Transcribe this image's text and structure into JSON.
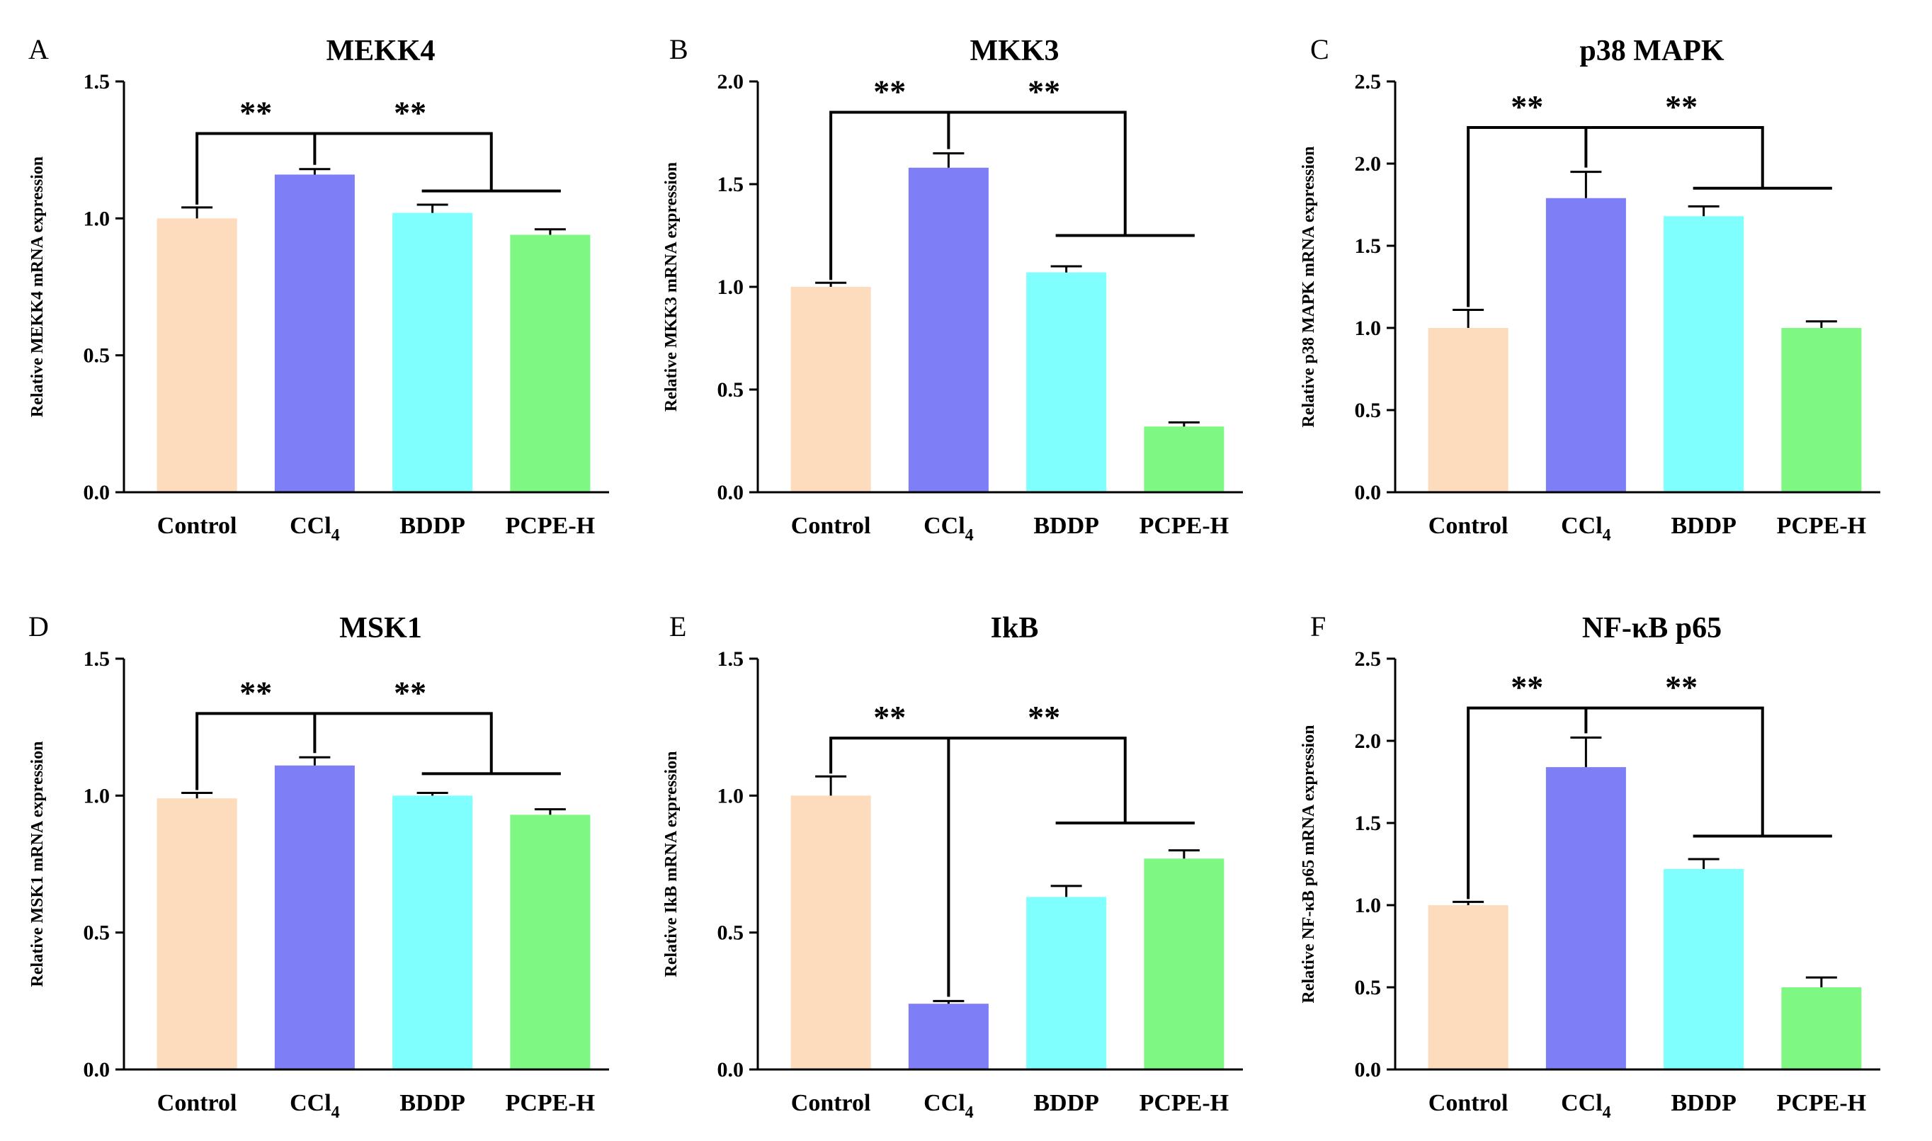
{
  "figure": {
    "colors": {
      "Control": "#FDDCBE",
      "CCl4": "#7E7EF7",
      "BDDP": "#80FFFF",
      "PCPE-H": "#7FF883"
    },
    "significance": "**"
  },
  "chart_data": [
    {
      "type": "bar",
      "panel": "A",
      "title": "MEKK4",
      "ylabel": "Relative MEKK4  mRNA expression",
      "categories": [
        {
          "label": "Control",
          "sub": ""
        },
        {
          "label": "CCl",
          "sub": "4"
        },
        {
          "label": "BDDP",
          "sub": ""
        },
        {
          "label": "PCPE-H",
          "sub": ""
        }
      ],
      "values": [
        1.0,
        1.16,
        1.02,
        0.94
      ],
      "errors": [
        0.04,
        0.02,
        0.03,
        0.02
      ],
      "ylim": [
        0,
        1.5
      ],
      "yticks": [
        "0.0",
        "0.5",
        "1.0",
        "1.5"
      ],
      "comparison": {
        "ref": 1,
        "main_y": 1.31,
        "left_to": 0,
        "right_to": 3,
        "sub_y": 1.1,
        "sub_from": 2,
        "sub_to": 3,
        "drop_y": 1.1
      }
    },
    {
      "type": "bar",
      "panel": "B",
      "title": "MKK3",
      "ylabel": "Relative MKK3  mRNA expression",
      "categories": [
        {
          "label": "Control",
          "sub": ""
        },
        {
          "label": "CCl",
          "sub": "4"
        },
        {
          "label": "BDDP",
          "sub": ""
        },
        {
          "label": "PCPE-H",
          "sub": ""
        }
      ],
      "values": [
        1.0,
        1.58,
        1.07,
        0.32
      ],
      "errors": [
        0.02,
        0.07,
        0.03,
        0.02
      ],
      "ylim": [
        0,
        2.0
      ],
      "yticks": [
        "0.0",
        "0.5",
        "1.0",
        "1.5",
        "2.0"
      ],
      "comparison": {
        "ref": 1,
        "main_y": 1.85,
        "left_to": 0,
        "right_to": 3,
        "sub_y": 1.25,
        "sub_from": 2,
        "sub_to": 3,
        "drop_y": 1.25
      }
    },
    {
      "type": "bar",
      "panel": "C",
      "title": "p38 MAPK",
      "ylabel": "Relative p38 MAPK  mRNA expression",
      "categories": [
        {
          "label": "Control",
          "sub": ""
        },
        {
          "label": "CCl",
          "sub": "4"
        },
        {
          "label": "BDDP",
          "sub": ""
        },
        {
          "label": "PCPE-H",
          "sub": ""
        }
      ],
      "values": [
        1.0,
        1.79,
        1.68,
        1.0
      ],
      "errors": [
        0.11,
        0.16,
        0.06,
        0.04
      ],
      "ylim": [
        0,
        2.5
      ],
      "yticks": [
        "0.0",
        "0.5",
        "1.0",
        "1.5",
        "2.0",
        "2.5"
      ],
      "comparison": {
        "ref": 1,
        "main_y": 2.22,
        "left_to": 0,
        "right_to": 3,
        "sub_y": 1.85,
        "sub_from": 2,
        "sub_to": 3,
        "drop_y": 1.85
      }
    },
    {
      "type": "bar",
      "panel": "D",
      "title": "MSK1",
      "ylabel": "Relative MSK1  mRNA expression",
      "categories": [
        {
          "label": "Control",
          "sub": ""
        },
        {
          "label": "CCl",
          "sub": "4"
        },
        {
          "label": "BDDP",
          "sub": ""
        },
        {
          "label": "PCPE-H",
          "sub": ""
        }
      ],
      "values": [
        0.99,
        1.11,
        1.0,
        0.93
      ],
      "errors": [
        0.02,
        0.03,
        0.01,
        0.02
      ],
      "ylim": [
        0,
        1.5
      ],
      "yticks": [
        "0.0",
        "0.5",
        "1.0",
        "1.5"
      ],
      "comparison": {
        "ref": 1,
        "main_y": 1.3,
        "left_to": 0,
        "right_to": 3,
        "sub_y": 1.08,
        "sub_from": 2,
        "sub_to": 3,
        "drop_y": 1.08
      }
    },
    {
      "type": "bar",
      "panel": "E",
      "title": "IkB",
      "ylabel": "Relative IkB  mRNA expression",
      "categories": [
        {
          "label": "Control",
          "sub": ""
        },
        {
          "label": "CCl",
          "sub": "4"
        },
        {
          "label": "BDDP",
          "sub": ""
        },
        {
          "label": "PCPE-H",
          "sub": ""
        }
      ],
      "values": [
        1.0,
        0.24,
        0.63,
        0.77
      ],
      "errors": [
        0.07,
        0.01,
        0.04,
        0.03
      ],
      "ylim": [
        0,
        1.5
      ],
      "yticks": [
        "0.0",
        "0.5",
        "1.0",
        "1.5"
      ],
      "comparison": {
        "ref": 1,
        "main_y": 1.21,
        "left_to": 0,
        "right_to": 3,
        "sub_y": 0.9,
        "sub_from": 2,
        "sub_to": 3,
        "drop_y": 0.9
      }
    },
    {
      "type": "bar",
      "panel": "F",
      "title": "NF-κB p65",
      "ylabel": "Relative NF-κB p65  mRNA expression",
      "categories": [
        {
          "label": "Control",
          "sub": ""
        },
        {
          "label": "CCl",
          "sub": "4"
        },
        {
          "label": "BDDP",
          "sub": ""
        },
        {
          "label": "PCPE-H",
          "sub": ""
        }
      ],
      "values": [
        1.0,
        1.84,
        1.22,
        0.5
      ],
      "errors": [
        0.02,
        0.18,
        0.06,
        0.06
      ],
      "ylim": [
        0,
        2.5
      ],
      "yticks": [
        "0.0",
        "0.5",
        "1.0",
        "1.5",
        "2.0",
        "2.5"
      ],
      "comparison": {
        "ref": 1,
        "main_y": 2.2,
        "left_to": 0,
        "right_to": 3,
        "sub_y": 1.42,
        "sub_from": 2,
        "sub_to": 3,
        "drop_y": 1.42
      }
    }
  ]
}
